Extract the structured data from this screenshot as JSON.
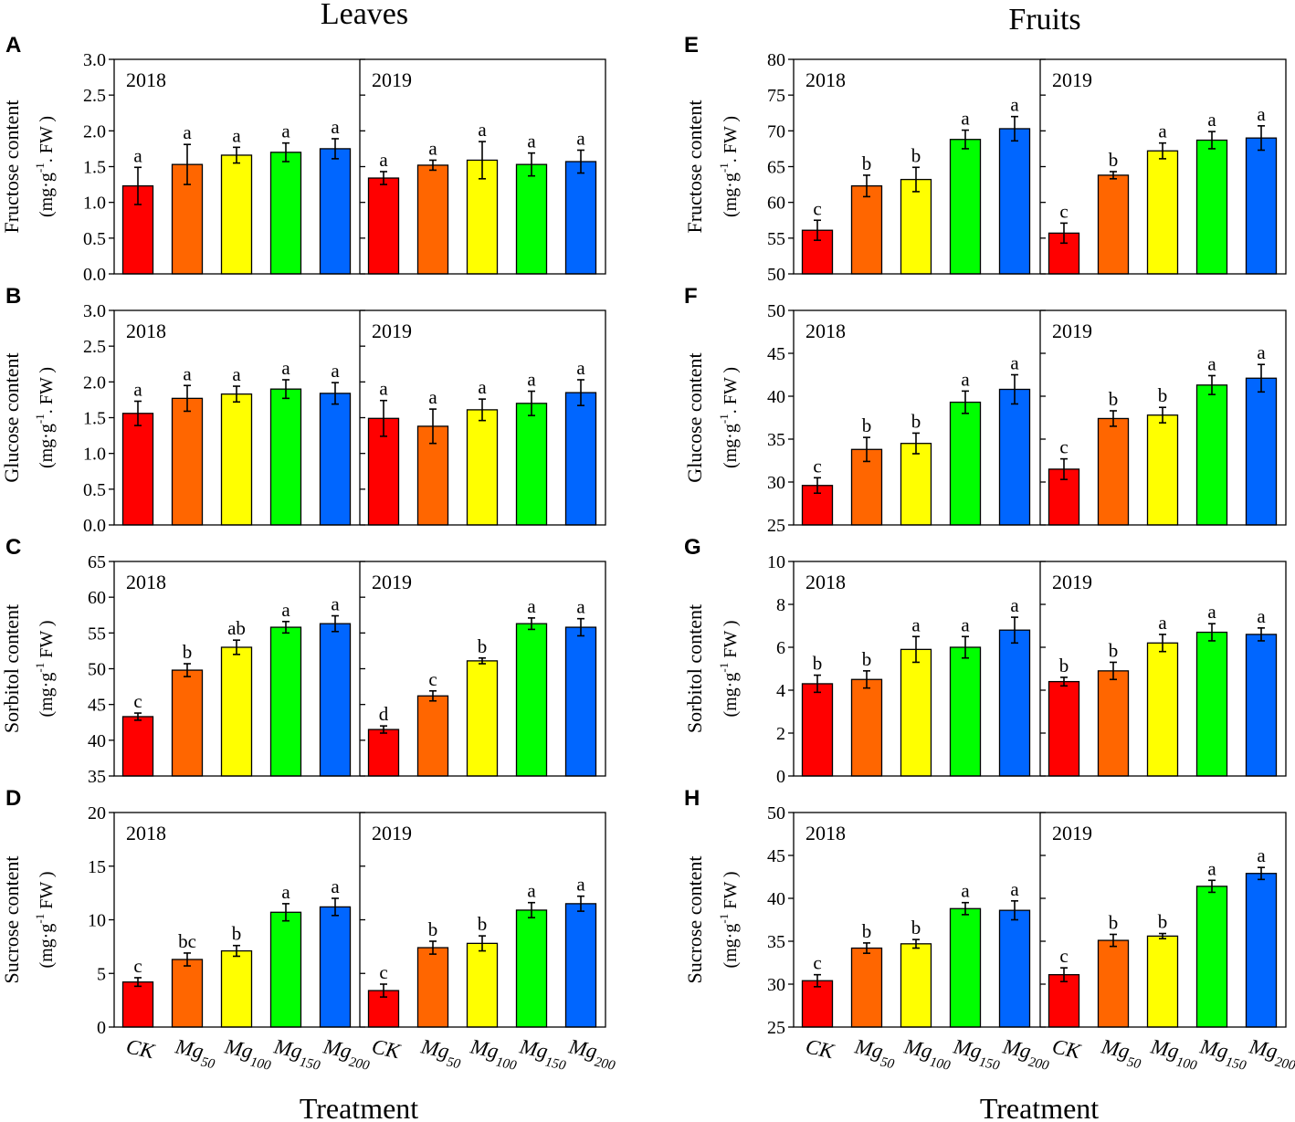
{
  "figure": {
    "left_title": "Leaves",
    "right_title": "Fruits",
    "x_title": "Treatment",
    "categories": [
      {
        "main": "CK",
        "sub": ""
      },
      {
        "main": "Mg",
        "sub": "50"
      },
      {
        "main": "Mg",
        "sub": "100"
      },
      {
        "main": "Mg",
        "sub": "150"
      },
      {
        "main": "Mg",
        "sub": "200"
      }
    ],
    "colors": [
      "#ff0000",
      "#ff6600",
      "#ffff00",
      "#00ff00",
      "#0066ff"
    ]
  },
  "chart_data": [
    {
      "panel": "A",
      "type": "bar",
      "tissue": "Leaves",
      "ylabel": "Fructose content",
      "unit": {
        "pre": "(mg·g",
        "sup": "-1",
        "post": ". FW )"
      },
      "ylim": [
        0,
        3
      ],
      "yticks": [
        "0.0",
        "0.5",
        "1.0",
        "1.5",
        "2.0",
        "2.5",
        "3.0"
      ],
      "categories": [
        "CK",
        "Mg50",
        "Mg100",
        "Mg150",
        "Mg200"
      ],
      "groups": [
        {
          "year": "2018",
          "values": [
            1.23,
            1.53,
            1.66,
            1.7,
            1.75
          ],
          "errors": [
            0.26,
            0.28,
            0.11,
            0.13,
            0.14
          ],
          "letters": [
            "a",
            "a",
            "a",
            "a",
            "a"
          ]
        },
        {
          "year": "2019",
          "values": [
            1.34,
            1.52,
            1.59,
            1.53,
            1.57
          ],
          "errors": [
            0.09,
            0.07,
            0.26,
            0.16,
            0.16
          ],
          "letters": [
            "a",
            "a",
            "a",
            "a",
            "a"
          ]
        }
      ]
    },
    {
      "panel": "B",
      "type": "bar",
      "tissue": "Leaves",
      "ylabel": "Glucose content",
      "unit": {
        "pre": "(mg·g",
        "sup": "-1",
        "post": ". FW )"
      },
      "ylim": [
        0,
        3
      ],
      "yticks": [
        "0.0",
        "0.5",
        "1.0",
        "1.5",
        "2.0",
        "2.5",
        "3.0"
      ],
      "categories": [
        "CK",
        "Mg50",
        "Mg100",
        "Mg150",
        "Mg200"
      ],
      "groups": [
        {
          "year": "2018",
          "values": [
            1.56,
            1.77,
            1.83,
            1.9,
            1.84
          ],
          "errors": [
            0.17,
            0.18,
            0.11,
            0.13,
            0.15
          ],
          "letters": [
            "a",
            "a",
            "a",
            "a",
            "a"
          ]
        },
        {
          "year": "2019",
          "values": [
            1.49,
            1.38,
            1.61,
            1.7,
            1.85
          ],
          "errors": [
            0.25,
            0.24,
            0.15,
            0.17,
            0.18
          ],
          "letters": [
            "a",
            "a",
            "a",
            "a",
            "a"
          ]
        }
      ]
    },
    {
      "panel": "C",
      "type": "bar",
      "tissue": "Leaves",
      "ylabel": "Sorbitol content",
      "unit": {
        "pre": "(mg·g",
        "sup": "-1",
        "post": " FW )"
      },
      "ylim": [
        35,
        65
      ],
      "yticks": [
        "35",
        "40",
        "45",
        "50",
        "55",
        "60",
        "65"
      ],
      "categories": [
        "CK",
        "Mg50",
        "Mg100",
        "Mg150",
        "Mg200"
      ],
      "groups": [
        {
          "year": "2018",
          "values": [
            43.3,
            49.8,
            53.0,
            55.8,
            56.3
          ],
          "errors": [
            0.5,
            0.9,
            1.0,
            0.8,
            1.1
          ],
          "letters": [
            "c",
            "b",
            "ab",
            "a",
            "a"
          ]
        },
        {
          "year": "2019",
          "values": [
            41.5,
            46.2,
            51.1,
            56.3,
            55.8
          ],
          "errors": [
            0.5,
            0.7,
            0.4,
            0.8,
            1.2
          ],
          "letters": [
            "d",
            "c",
            "b",
            "a",
            "a"
          ]
        }
      ]
    },
    {
      "panel": "D",
      "type": "bar",
      "tissue": "Leaves",
      "ylabel": "Sucrose content",
      "unit": {
        "pre": "(mg·g",
        "sup": "-1",
        "post": " FW )"
      },
      "ylim": [
        0,
        20
      ],
      "yticks": [
        "0",
        "5",
        "10",
        "15",
        "20"
      ],
      "categories": [
        "CK",
        "Mg50",
        "Mg100",
        "Mg150",
        "Mg200"
      ],
      "groups": [
        {
          "year": "2018",
          "values": [
            4.2,
            6.3,
            7.1,
            10.7,
            11.2
          ],
          "errors": [
            0.4,
            0.6,
            0.5,
            0.8,
            0.8
          ],
          "letters": [
            "c",
            "bc",
            "b",
            "a",
            "a"
          ]
        },
        {
          "year": "2019",
          "values": [
            3.4,
            7.4,
            7.8,
            10.9,
            11.5
          ],
          "errors": [
            0.6,
            0.6,
            0.7,
            0.7,
            0.7
          ],
          "letters": [
            "c",
            "b",
            "b",
            "a",
            "a"
          ]
        }
      ]
    },
    {
      "panel": "E",
      "type": "bar",
      "tissue": "Fruits",
      "ylabel": "Fructose content",
      "unit": {
        "pre": "(mg·g",
        "sup": "-1",
        "post": ". FW )"
      },
      "ylim": [
        50,
        80
      ],
      "yticks": [
        "50",
        "55",
        "60",
        "65",
        "70",
        "75",
        "80"
      ],
      "categories": [
        "CK",
        "Mg50",
        "Mg100",
        "Mg150",
        "Mg200"
      ],
      "groups": [
        {
          "year": "2018",
          "values": [
            56.1,
            62.3,
            63.2,
            68.8,
            70.3
          ],
          "errors": [
            1.4,
            1.5,
            1.7,
            1.3,
            1.7
          ],
          "letters": [
            "c",
            "b",
            "b",
            "a",
            "a"
          ]
        },
        {
          "year": "2019",
          "values": [
            55.7,
            63.8,
            67.2,
            68.7,
            69.0
          ],
          "errors": [
            1.4,
            0.5,
            1.1,
            1.2,
            1.7
          ],
          "letters": [
            "c",
            "b",
            "a",
            "a",
            "a"
          ]
        }
      ]
    },
    {
      "panel": "F",
      "type": "bar",
      "tissue": "Fruits",
      "ylabel": "Glucose content",
      "unit": {
        "pre": "(mg·g",
        "sup": "-1",
        "post": ". FW )"
      },
      "ylim": [
        25,
        50
      ],
      "yticks": [
        "25",
        "30",
        "35",
        "40",
        "45",
        "50"
      ],
      "categories": [
        "CK",
        "Mg50",
        "Mg100",
        "Mg150",
        "Mg200"
      ],
      "groups": [
        {
          "year": "2018",
          "values": [
            29.6,
            33.8,
            34.5,
            39.3,
            40.8
          ],
          "errors": [
            0.9,
            1.4,
            1.2,
            1.3,
            1.7
          ],
          "letters": [
            "c",
            "b",
            "b",
            "a",
            "a"
          ]
        },
        {
          "year": "2019",
          "values": [
            31.5,
            37.4,
            37.8,
            41.3,
            42.1
          ],
          "errors": [
            1.2,
            0.9,
            0.9,
            1.1,
            1.6
          ],
          "letters": [
            "c",
            "b",
            "b",
            "a",
            "a"
          ]
        }
      ]
    },
    {
      "panel": "G",
      "type": "bar",
      "tissue": "Fruits",
      "ylabel": "Sorbitol content",
      "unit": {
        "pre": "(mg·g",
        "sup": "-1",
        "post": " FW )"
      },
      "ylim": [
        0,
        10
      ],
      "yticks": [
        "0",
        "2",
        "4",
        "6",
        "8",
        "10"
      ],
      "categories": [
        "CK",
        "Mg50",
        "Mg100",
        "Mg150",
        "Mg200"
      ],
      "groups": [
        {
          "year": "2018",
          "values": [
            4.3,
            4.5,
            5.9,
            6.0,
            6.8
          ],
          "errors": [
            0.4,
            0.4,
            0.6,
            0.5,
            0.6
          ],
          "letters": [
            "b",
            "b",
            "a",
            "a",
            "a"
          ]
        },
        {
          "year": "2019",
          "values": [
            4.4,
            4.9,
            6.2,
            6.7,
            6.6
          ],
          "errors": [
            0.2,
            0.4,
            0.4,
            0.4,
            0.3
          ],
          "letters": [
            "b",
            "b",
            "a",
            "a",
            "a"
          ]
        }
      ]
    },
    {
      "panel": "H",
      "type": "bar",
      "tissue": "Fruits",
      "ylabel": "Sucrose content",
      "unit": {
        "pre": "(mg·g",
        "sup": "-1",
        "post": " FW )"
      },
      "ylim": [
        25,
        50
      ],
      "yticks": [
        "25",
        "30",
        "35",
        "40",
        "45",
        "50"
      ],
      "categories": [
        "CK",
        "Mg50",
        "Mg100",
        "Mg150",
        "Mg200"
      ],
      "groups": [
        {
          "year": "2018",
          "values": [
            30.4,
            34.2,
            34.7,
            38.8,
            38.6
          ],
          "errors": [
            0.7,
            0.6,
            0.5,
            0.7,
            1.1
          ],
          "letters": [
            "c",
            "b",
            "b",
            "a",
            "a"
          ]
        },
        {
          "year": "2019",
          "values": [
            31.1,
            35.1,
            35.6,
            41.4,
            42.9
          ],
          "errors": [
            0.8,
            0.7,
            0.3,
            0.7,
            0.7
          ],
          "letters": [
            "c",
            "b",
            "b",
            "a",
            "a"
          ]
        }
      ]
    }
  ]
}
